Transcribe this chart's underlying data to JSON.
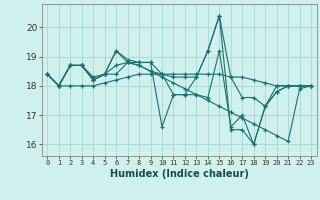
{
  "bg_color": "#cff0ec",
  "grid_color": "#aaddd8",
  "line_color": "#1a7070",
  "xlabel": "Humidex (Indice chaleur)",
  "ylabel_ticks": [
    16,
    17,
    18,
    19,
    20
  ],
  "xlim": [
    -0.5,
    23.5
  ],
  "ylim": [
    15.6,
    20.8
  ],
  "xticks": [
    0,
    1,
    2,
    3,
    4,
    5,
    6,
    7,
    8,
    9,
    10,
    11,
    12,
    13,
    14,
    15,
    16,
    17,
    18,
    19,
    20,
    21,
    22,
    23
  ],
  "lines": [
    {
      "x": [
        0,
        1,
        2,
        3,
        4,
        5,
        6,
        7,
        8,
        9,
        10,
        11,
        12,
        13,
        14,
        15,
        16,
        17,
        18,
        19,
        20,
        21,
        22,
        23
      ],
      "y": [
        18.4,
        18.0,
        18.7,
        18.7,
        18.2,
        18.4,
        19.2,
        18.9,
        18.8,
        18.8,
        18.4,
        18.3,
        18.3,
        18.3,
        19.2,
        20.4,
        18.3,
        17.6,
        17.6,
        17.3,
        18.0,
        18.0,
        18.0,
        18.0
      ]
    },
    {
      "x": [
        1,
        2,
        3,
        4,
        5,
        6,
        7,
        8,
        9,
        10,
        11,
        12,
        13,
        14,
        15,
        16,
        17,
        18,
        19,
        20,
        21,
        22
      ],
      "y": [
        18.0,
        18.7,
        18.7,
        18.2,
        18.4,
        19.2,
        18.8,
        18.8,
        18.8,
        16.6,
        17.7,
        17.7,
        18.3,
        19.2,
        20.4,
        16.5,
        16.5,
        16.0,
        17.3,
        17.8,
        18.0,
        18.0
      ]
    },
    {
      "x": [
        0,
        1,
        2,
        3,
        4,
        5,
        6,
        7,
        8,
        9,
        10,
        11,
        12,
        13,
        14,
        15,
        16,
        17,
        18,
        19,
        20,
        21,
        22,
        23
      ],
      "y": [
        18.4,
        18.0,
        18.7,
        18.7,
        18.3,
        18.4,
        18.4,
        18.8,
        18.7,
        18.5,
        18.3,
        18.1,
        17.9,
        17.7,
        17.5,
        17.3,
        17.1,
        16.9,
        16.7,
        16.5,
        16.3,
        16.1,
        17.9,
        18.0
      ]
    },
    {
      "x": [
        0,
        1,
        2,
        3,
        4,
        5,
        6,
        7,
        8,
        9,
        10,
        11,
        12,
        13,
        14,
        15,
        16,
        17,
        18,
        19,
        20,
        21,
        22,
        23
      ],
      "y": [
        18.4,
        18.0,
        18.0,
        18.0,
        18.0,
        18.1,
        18.2,
        18.3,
        18.4,
        18.4,
        18.4,
        18.4,
        18.4,
        18.4,
        18.4,
        18.4,
        18.3,
        18.3,
        18.2,
        18.1,
        18.0,
        18.0,
        18.0,
        18.0
      ]
    },
    {
      "x": [
        0,
        1,
        2,
        3,
        4,
        5,
        6,
        7,
        8,
        9,
        10,
        11,
        12,
        13,
        14,
        15,
        16,
        17,
        18,
        19,
        20,
        21,
        22,
        23
      ],
      "y": [
        18.4,
        18.0,
        18.7,
        18.7,
        18.2,
        18.4,
        18.7,
        18.8,
        18.7,
        18.5,
        18.4,
        17.7,
        17.7,
        17.7,
        17.6,
        19.2,
        16.6,
        17.0,
        16.0,
        17.3,
        17.8,
        18.0,
        18.0,
        18.0
      ]
    }
  ]
}
